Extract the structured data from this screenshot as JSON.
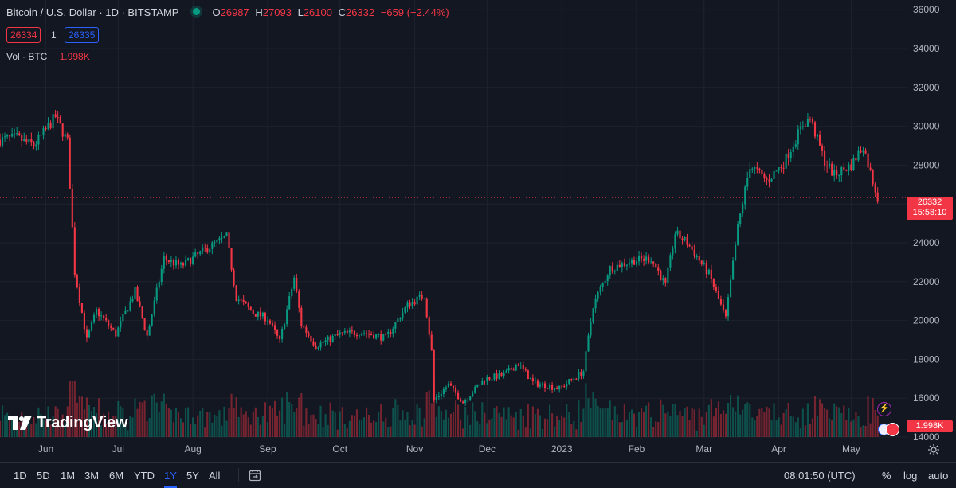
{
  "header": {
    "title": "Bitcoin / U.S. Dollar · 1D · BITSTAMP",
    "open_label": "O",
    "open": "26987",
    "high_label": "H",
    "high": "27093",
    "low_label": "L",
    "low": "26100",
    "close_label": "C",
    "close": "26332",
    "change": "−659 (−2.44%)",
    "bid": "26334",
    "spread": "1",
    "ask": "26335",
    "volume_label": "Vol · BTC",
    "volume_value": "1.998K"
  },
  "logo": {
    "text": "TradingView"
  },
  "price_tag": {
    "price": "26332",
    "countdown": "15:58:10"
  },
  "volume_tag": "1.998K",
  "bottom_bar": {
    "ranges": [
      "1D",
      "5D",
      "1M",
      "3M",
      "6M",
      "YTD",
      "1Y",
      "5Y",
      "All"
    ],
    "active_range": "1Y",
    "clock": "08:01:50 (UTC)",
    "percent": "%",
    "log": "log",
    "auto": "auto"
  },
  "colors": {
    "up": "#089981",
    "down": "#f23645",
    "background": "#131722",
    "grid": "#1e222d",
    "accent": "#2962ff"
  },
  "chart_data": {
    "type": "candlestick",
    "title": "",
    "xlabel": "",
    "ylabel": "",
    "ylim": [
      14000,
      36500
    ],
    "y_ticks": [
      14000,
      16000,
      18000,
      20000,
      22000,
      24000,
      26000,
      28000,
      30000,
      32000,
      34000,
      36000
    ],
    "x_tick_labels": [
      {
        "label": "Jun",
        "date": "2022-06-01"
      },
      {
        "label": "Jul",
        "date": "2022-07-01"
      },
      {
        "label": "Aug",
        "date": "2022-08-01"
      },
      {
        "label": "Sep",
        "date": "2022-09-01"
      },
      {
        "label": "Oct",
        "date": "2022-10-01"
      },
      {
        "label": "Nov",
        "date": "2022-11-01"
      },
      {
        "label": "Dec",
        "date": "2022-12-01"
      },
      {
        "label": "2023",
        "date": "2023-01-01"
      },
      {
        "label": "Feb",
        "date": "2023-02-01"
      },
      {
        "label": "Mar",
        "date": "2023-03-01"
      },
      {
        "label": "Apr",
        "date": "2023-04-01"
      },
      {
        "label": "May",
        "date": "2023-05-01"
      }
    ],
    "x_range": [
      "2022-05-13",
      "2023-05-24"
    ],
    "last_price": 26332,
    "grid": true,
    "close_series": [
      [
        "2022-05-13",
        29300
      ],
      [
        "2022-05-20",
        29400
      ],
      [
        "2022-05-27",
        29000
      ],
      [
        "2022-06-01",
        29800
      ],
      [
        "2022-06-05",
        30500
      ],
      [
        "2022-06-10",
        29200
      ],
      [
        "2022-06-13",
        22500
      ],
      [
        "2022-06-18",
        19000
      ],
      [
        "2022-06-22",
        20500
      ],
      [
        "2022-06-30",
        19300
      ],
      [
        "2022-07-08",
        21500
      ],
      [
        "2022-07-13",
        19200
      ],
      [
        "2022-07-20",
        23200
      ],
      [
        "2022-07-27",
        22800
      ],
      [
        "2022-08-01",
        23200
      ],
      [
        "2022-08-08",
        23800
      ],
      [
        "2022-08-15",
        24300
      ],
      [
        "2022-08-19",
        21200
      ],
      [
        "2022-08-26",
        20400
      ],
      [
        "2022-09-01",
        20100
      ],
      [
        "2022-09-06",
        18900
      ],
      [
        "2022-09-12",
        22200
      ],
      [
        "2022-09-15",
        19800
      ],
      [
        "2022-09-21",
        18700
      ],
      [
        "2022-10-01",
        19300
      ],
      [
        "2022-10-10",
        19400
      ],
      [
        "2022-10-20",
        19100
      ],
      [
        "2022-10-29",
        20800
      ],
      [
        "2022-11-05",
        21300
      ],
      [
        "2022-11-08",
        18400
      ],
      [
        "2022-11-09",
        15900
      ],
      [
        "2022-11-15",
        16700
      ],
      [
        "2022-11-21",
        15800
      ],
      [
        "2022-11-30",
        17000
      ],
      [
        "2022-12-08",
        17200
      ],
      [
        "2022-12-14",
        17800
      ],
      [
        "2022-12-20",
        16800
      ],
      [
        "2022-12-31",
        16500
      ],
      [
        "2023-01-10",
        17400
      ],
      [
        "2023-01-14",
        20800
      ],
      [
        "2023-01-21",
        22700
      ],
      [
        "2023-01-31",
        23100
      ],
      [
        "2023-02-07",
        23200
      ],
      [
        "2023-02-13",
        21800
      ],
      [
        "2023-02-17",
        24500
      ],
      [
        "2023-02-22",
        24000
      ],
      [
        "2023-03-03",
        22400
      ],
      [
        "2023-03-10",
        20100
      ],
      [
        "2023-03-15",
        24800
      ],
      [
        "2023-03-20",
        28000
      ],
      [
        "2023-03-27",
        27200
      ],
      [
        "2023-04-03",
        28100
      ],
      [
        "2023-04-11",
        30100
      ],
      [
        "2023-04-14",
        30400
      ],
      [
        "2023-04-20",
        28200
      ],
      [
        "2023-04-24",
        27500
      ],
      [
        "2023-05-01",
        28000
      ],
      [
        "2023-05-06",
        29000
      ],
      [
        "2023-05-09",
        27600
      ],
      [
        "2023-05-12",
        26332
      ]
    ]
  }
}
